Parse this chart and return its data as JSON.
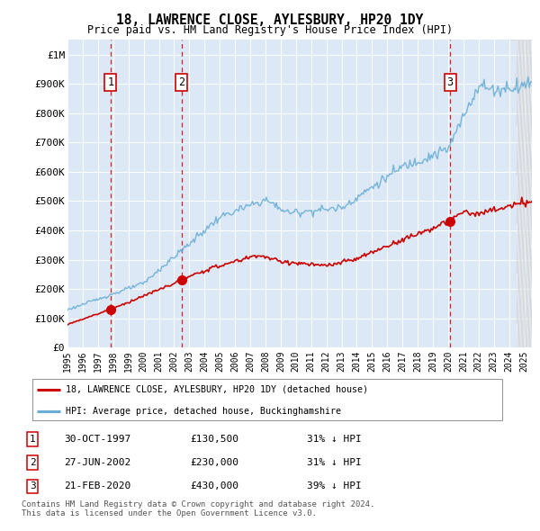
{
  "title": "18, LAWRENCE CLOSE, AYLESBURY, HP20 1DY",
  "subtitle": "Price paid vs. HM Land Registry's House Price Index (HPI)",
  "ylim": [
    0,
    1050000
  ],
  "yticks": [
    0,
    100000,
    200000,
    300000,
    400000,
    500000,
    600000,
    700000,
    800000,
    900000,
    1000000
  ],
  "ytick_labels": [
    "£0",
    "£100K",
    "£200K",
    "£300K",
    "£400K",
    "£500K",
    "£600K",
    "£700K",
    "£800K",
    "£900K",
    "£1M"
  ],
  "xlim_start": 1995.5,
  "xlim_end": 2025.5,
  "xticks": [
    1995,
    1996,
    1997,
    1998,
    1999,
    2000,
    2001,
    2002,
    2003,
    2004,
    2005,
    2006,
    2007,
    2008,
    2009,
    2010,
    2011,
    2012,
    2013,
    2014,
    2015,
    2016,
    2017,
    2018,
    2019,
    2020,
    2021,
    2022,
    2023,
    2024,
    2025
  ],
  "hpi_color": "#6aaed6",
  "price_color": "#cc0000",
  "dashed_color": "#cc0000",
  "bg_color": "#dce8f5",
  "sale_points": [
    {
      "year": 1997.83,
      "price": 130500,
      "label": "1"
    },
    {
      "year": 2002.49,
      "price": 230000,
      "label": "2"
    },
    {
      "year": 2020.13,
      "price": 430000,
      "label": "3"
    }
  ],
  "legend_line1": "18, LAWRENCE CLOSE, AYLESBURY, HP20 1DY (detached house)",
  "legend_line2": "HPI: Average price, detached house, Buckinghamshire",
  "table_rows": [
    {
      "num": "1",
      "date": "30-OCT-1997",
      "price": "£130,500",
      "note": "31% ↓ HPI"
    },
    {
      "num": "2",
      "date": "27-JUN-2002",
      "price": "£230,000",
      "note": "31% ↓ HPI"
    },
    {
      "num": "3",
      "date": "21-FEB-2020",
      "price": "£430,000",
      "note": "39% ↓ HPI"
    }
  ],
  "footer1": "Contains HM Land Registry data © Crown copyright and database right 2024.",
  "footer2": "This data is licensed under the Open Government Licence v3.0."
}
